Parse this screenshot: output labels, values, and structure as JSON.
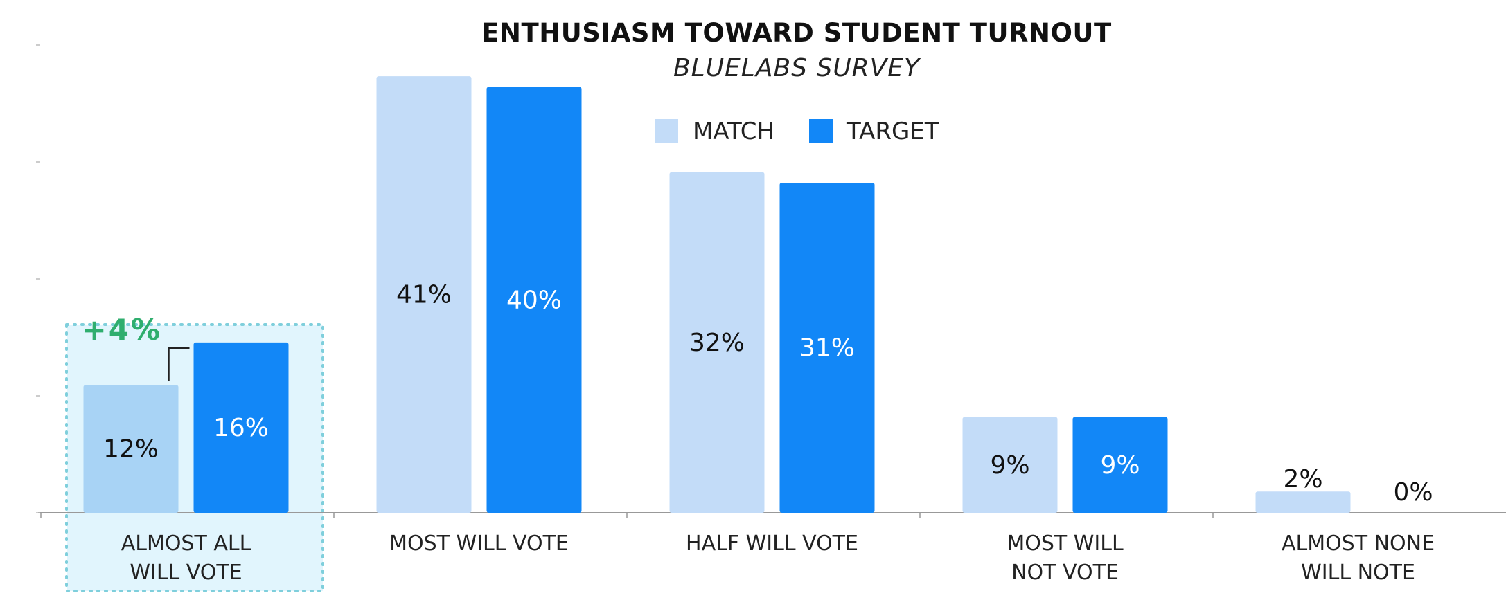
{
  "chart_data": {
    "type": "bar",
    "title": "ENTHUSIASM TOWARD STUDENT TURNOUT",
    "subtitle": "BLUELABS SURVEY",
    "categories": [
      [
        "ALMOST ALL",
        "WILL VOTE"
      ],
      [
        "MOST WILL VOTE"
      ],
      [
        "HALF WILL VOTE"
      ],
      [
        "MOST WILL",
        "NOT VOTE"
      ],
      [
        "ALMOST NONE",
        "WILL NOTE"
      ]
    ],
    "series": [
      {
        "name": "MATCH",
        "values": [
          12,
          41,
          32,
          9,
          2
        ],
        "labels": [
          "12%",
          "41%",
          "32%",
          "9%",
          "2%"
        ]
      },
      {
        "name": "TARGET",
        "values": [
          16,
          40,
          31,
          9,
          0
        ],
        "labels": [
          "16%",
          "40%",
          "31%",
          "9%",
          "0%"
        ]
      }
    ],
    "ylim": [
      0,
      44
    ],
    "legend_position": "top-center",
    "highlight_category": 0,
    "annotation": {
      "text": "+4%",
      "category": 0
    },
    "colors": {
      "match": "#c3dcf8",
      "match_highlight": "#a8d3f5",
      "target": "#1287f7",
      "highlight_fill": "#e1f5fd",
      "highlight_border": "#7fcfdc",
      "annotation": "#2fae6e",
      "axis": "#999999"
    }
  }
}
